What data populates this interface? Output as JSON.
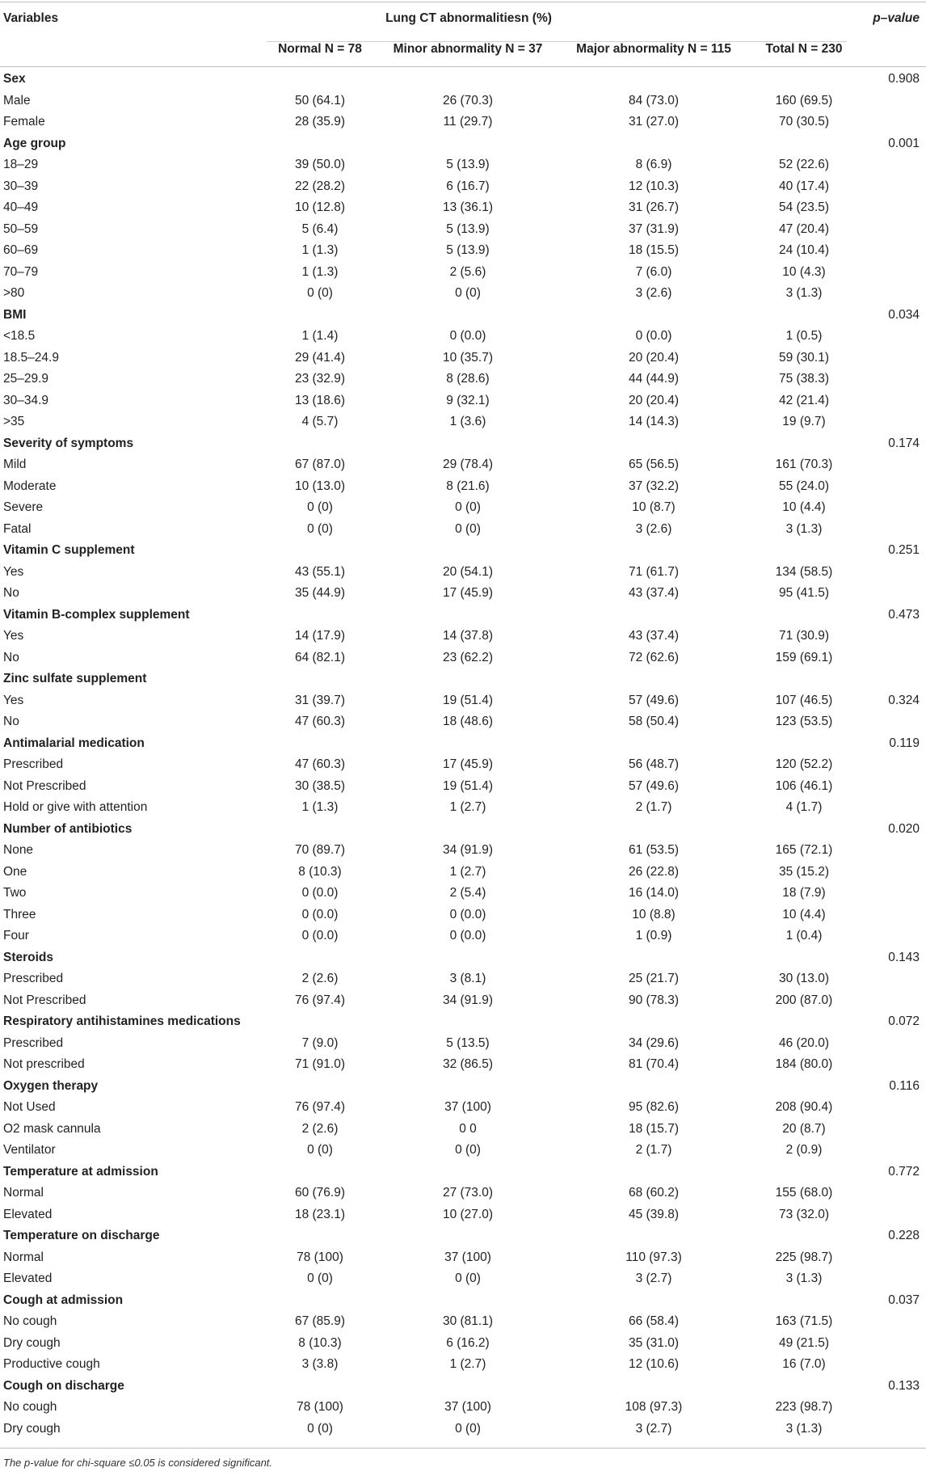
{
  "header": {
    "variables": "Variables",
    "group": "Lung CT abnormalitiesn (%)",
    "pvalue": "p–value",
    "normal": "Normal N = 78",
    "minor": "Minor abnormality N = 37",
    "major": "Major abnormality N = 115",
    "total": "Total N = 230"
  },
  "rows": [
    {
      "label": "Sex",
      "section": true,
      "p": "0.908"
    },
    {
      "label": "Male",
      "v": [
        "50 (64.1)",
        "26 (70.3)",
        "84 (73.0)",
        "160 (69.5)"
      ]
    },
    {
      "label": "Female",
      "v": [
        "28 (35.9)",
        "11 (29.7)",
        "31 (27.0)",
        "70 (30.5)"
      ]
    },
    {
      "label": "Age group",
      "section": true,
      "p": "0.001"
    },
    {
      "label": "18–29",
      "v": [
        "39 (50.0)",
        "5 (13.9)",
        "8 (6.9)",
        "52 (22.6)"
      ]
    },
    {
      "label": "30–39",
      "v": [
        "22 (28.2)",
        "6 (16.7)",
        "12 (10.3)",
        "40 (17.4)"
      ]
    },
    {
      "label": "40–49",
      "v": [
        "10 (12.8)",
        "13 (36.1)",
        "31 (26.7)",
        "54 (23.5)"
      ]
    },
    {
      "label": "50–59",
      "v": [
        "5 (6.4)",
        "5 (13.9)",
        "37 (31.9)",
        "47 (20.4)"
      ]
    },
    {
      "label": "60–69",
      "v": [
        "1 (1.3)",
        "5 (13.9)",
        "18 (15.5)",
        "24 (10.4)"
      ]
    },
    {
      "label": "70–79",
      "v": [
        "1 (1.3)",
        "2 (5.6)",
        "7 (6.0)",
        "10 (4.3)"
      ]
    },
    {
      "label": ">80",
      "v": [
        "0 (0)",
        "0 (0)",
        "3 (2.6)",
        "3 (1.3)"
      ]
    },
    {
      "label": "BMI",
      "section": true,
      "p": "0.034"
    },
    {
      "label": "<18.5",
      "v": [
        "1 (1.4)",
        "0 (0.0)",
        "0 (0.0)",
        "1 (0.5)"
      ]
    },
    {
      "label": "18.5–24.9",
      "v": [
        "29 (41.4)",
        "10 (35.7)",
        "20 (20.4)",
        "59 (30.1)"
      ]
    },
    {
      "label": "25–29.9",
      "v": [
        "23 (32.9)",
        "8 (28.6)",
        "44 (44.9)",
        "75 (38.3)"
      ]
    },
    {
      "label": "30–34.9",
      "v": [
        "13 (18.6)",
        "9 (32.1)",
        "20 (20.4)",
        "42 (21.4)"
      ]
    },
    {
      "label": ">35",
      "v": [
        "4 (5.7)",
        "1 (3.6)",
        "14 (14.3)",
        "19 (9.7)"
      ]
    },
    {
      "label": "Severity of symptoms",
      "section": true,
      "p": "0.174"
    },
    {
      "label": "Mild",
      "v": [
        "67 (87.0)",
        "29 (78.4)",
        "65 (56.5)",
        "161 (70.3)"
      ]
    },
    {
      "label": "Moderate",
      "v": [
        "10 (13.0)",
        "8 (21.6)",
        "37 (32.2)",
        "55 (24.0)"
      ]
    },
    {
      "label": "Severe",
      "v": [
        "0 (0)",
        "0 (0)",
        "10 (8.7)",
        "10 (4.4)"
      ]
    },
    {
      "label": "Fatal",
      "v": [
        "0 (0)",
        "0 (0)",
        "3 (2.6)",
        "3 (1.3)"
      ]
    },
    {
      "label": "Vitamin C supplement",
      "section": true,
      "p": "0.251"
    },
    {
      "label": "Yes",
      "v": [
        "43 (55.1)",
        "20 (54.1)",
        "71 (61.7)",
        "134 (58.5)"
      ]
    },
    {
      "label": "No",
      "v": [
        "35 (44.9)",
        "17 (45.9)",
        "43 (37.4)",
        "95 (41.5)"
      ]
    },
    {
      "label": "Vitamin B-complex supplement",
      "section": true,
      "p": "0.473"
    },
    {
      "label": "Yes",
      "v": [
        "14 (17.9)",
        "14 (37.8)",
        "43 (37.4)",
        "71 (30.9)"
      ]
    },
    {
      "label": "No",
      "v": [
        "64 (82.1)",
        "23 (62.2)",
        "72 (62.6)",
        "159 (69.1)"
      ]
    },
    {
      "label": "Zinc sulfate supplement",
      "section": true,
      "p": ""
    },
    {
      "label": "Yes",
      "v": [
        "31 (39.7)",
        "19 (51.4)",
        "57 (49.6)",
        "107 (46.5)"
      ],
      "p": "0.324"
    },
    {
      "label": "No",
      "v": [
        "47 (60.3)",
        "18 (48.6)",
        "58 (50.4)",
        "123 (53.5)"
      ]
    },
    {
      "label": "Antimalarial medication",
      "section": true,
      "p": "0.119"
    },
    {
      "label": "Prescribed",
      "v": [
        "47 (60.3)",
        "17 (45.9)",
        "56 (48.7)",
        "120 (52.2)"
      ]
    },
    {
      "label": "Not Prescribed",
      "v": [
        "30 (38.5)",
        "19 (51.4)",
        "57 (49.6)",
        "106 (46.1)"
      ]
    },
    {
      "label": "Hold or give with attention",
      "v": [
        "1 (1.3)",
        "1 (2.7)",
        "2 (1.7)",
        "4 (1.7)"
      ]
    },
    {
      "label": "Number of antibiotics",
      "section": true,
      "p": "0.020"
    },
    {
      "label": "None",
      "v": [
        "70 (89.7)",
        "34 (91.9)",
        "61 (53.5)",
        "165 (72.1)"
      ]
    },
    {
      "label": "One",
      "v": [
        "8 (10.3)",
        "1 (2.7)",
        "26 (22.8)",
        "35 (15.2)"
      ]
    },
    {
      "label": "Two",
      "v": [
        "0 (0.0)",
        "2 (5.4)",
        "16 (14.0)",
        "18 (7.9)"
      ]
    },
    {
      "label": "Three",
      "v": [
        "0 (0.0)",
        "0 (0.0)",
        "10 (8.8)",
        "10 (4.4)"
      ]
    },
    {
      "label": "Four",
      "v": [
        "0 (0.0)",
        "0 (0.0)",
        "1 (0.9)",
        "1 (0.4)"
      ]
    },
    {
      "label": "Steroids",
      "section": true,
      "p": "0.143"
    },
    {
      "label": "Prescribed",
      "v": [
        "2 (2.6)",
        "3 (8.1)",
        "25 (21.7)",
        "30 (13.0)"
      ]
    },
    {
      "label": "Not Prescribed",
      "v": [
        "76 (97.4)",
        "34 (91.9)",
        "90 (78.3)",
        "200 (87.0)"
      ]
    },
    {
      "label": "Respiratory antihistamines medications",
      "section": true,
      "p": "0.072"
    },
    {
      "label": "Prescribed",
      "v": [
        "7 (9.0)",
        "5 (13.5)",
        "34 (29.6)",
        "46 (20.0)"
      ]
    },
    {
      "label": "Not prescribed",
      "v": [
        "71 (91.0)",
        "32 (86.5)",
        "81 (70.4)",
        "184 (80.0)"
      ]
    },
    {
      "label": "Oxygen therapy",
      "section": true,
      "p": "0.116"
    },
    {
      "label": "Not Used",
      "v": [
        "76 (97.4)",
        "37 (100)",
        "95 (82.6)",
        "208 (90.4)"
      ]
    },
    {
      "label": "O2 mask cannula",
      "v": [
        "2 (2.6)",
        "0 0",
        "18 (15.7)",
        "20 (8.7)"
      ]
    },
    {
      "label": "Ventilator",
      "v": [
        "0 (0)",
        "0 (0)",
        "2 (1.7)",
        "2 (0.9)"
      ]
    },
    {
      "label": "Temperature at admission",
      "section": true,
      "p": "0.772"
    },
    {
      "label": "Normal",
      "v": [
        "60 (76.9)",
        "27 (73.0)",
        "68 (60.2)",
        "155 (68.0)"
      ]
    },
    {
      "label": "Elevated",
      "v": [
        "18 (23.1)",
        "10 (27.0)",
        "45 (39.8)",
        "73 (32.0)"
      ]
    },
    {
      "label": "Temperature on discharge",
      "section": true,
      "p": "0.228"
    },
    {
      "label": "Normal",
      "v": [
        "78 (100)",
        "37 (100)",
        "110 (97.3)",
        "225 (98.7)"
      ]
    },
    {
      "label": "Elevated",
      "v": [
        "0 (0)",
        "0 (0)",
        "3 (2.7)",
        "3 (1.3)"
      ]
    },
    {
      "label": "Cough at admission",
      "section": true,
      "p": "0.037"
    },
    {
      "label": "No cough",
      "v": [
        "67 (85.9)",
        "30 (81.1)",
        "66 (58.4)",
        "163 (71.5)"
      ]
    },
    {
      "label": "Dry cough",
      "v": [
        "8 (10.3)",
        "6 (16.2)",
        "35 (31.0)",
        "49 (21.5)"
      ]
    },
    {
      "label": "Productive cough",
      "v": [
        "3 (3.8)",
        "1 (2.7)",
        "12 (10.6)",
        "16 (7.0)"
      ]
    },
    {
      "label": "Cough on discharge",
      "section": true,
      "p": "0.133"
    },
    {
      "label": "No cough",
      "v": [
        "78 (100)",
        "37 (100)",
        "108 (97.3)",
        "223 (98.7)"
      ]
    },
    {
      "label": "Dry cough",
      "v": [
        "0 (0)",
        "0 (0)",
        "3 (2.7)",
        "3 (1.3)"
      ]
    }
  ],
  "footnote": "The p-value for chi-square ≤0.05 is considered significant."
}
